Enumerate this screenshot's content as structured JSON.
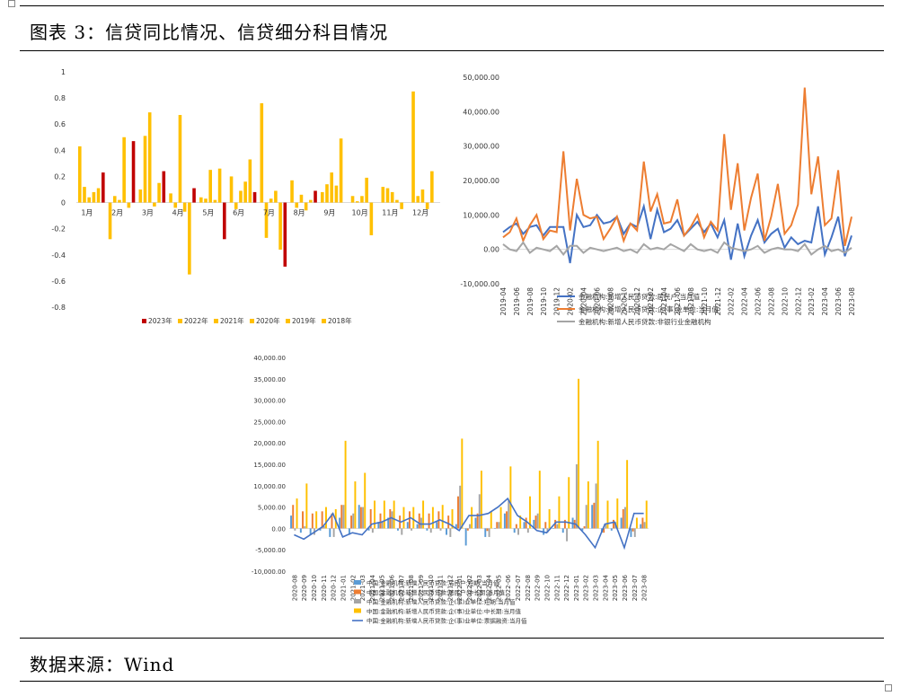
{
  "page": {
    "title": "图表 3：信贷同比情况、信贷细分科目情况",
    "source": "数据来源：Wind"
  },
  "colors": {
    "c2023": "#c00000",
    "cYellow": "#ffc000",
    "blue": "#4472c4",
    "orange": "#ed7d31",
    "gray": "#a5a5a5",
    "steel": "#5b9bd5"
  },
  "chart_data": [
    {
      "type": "bar",
      "ylim": [
        -0.8,
        1
      ],
      "yticks": [
        "1",
        "0.8",
        "0.6",
        "0.4",
        "0.2",
        "0",
        "-0.2",
        "-0.4",
        "-0.6",
        "-0.8"
      ],
      "categories": [
        "1月",
        "2月",
        "3月",
        "4月",
        "5月",
        "6月",
        "7月",
        "8月",
        "9月",
        "10月",
        "11月",
        "12月"
      ],
      "legend_position": "bottom",
      "series": [
        {
          "name": "2023年",
          "color": "#c00000",
          "values": [
            0.23,
            0.47,
            0.24,
            0.11,
            -0.28,
            0.08,
            -0.49,
            0.09,
            null,
            null,
            null,
            null
          ]
        },
        {
          "name": "2022年",
          "color": "#ffc000",
          "values": [
            0.43,
            -0.28,
            0.1,
            0.07,
            0.04,
            0.2,
            0.76,
            0.17,
            0.08,
            0.05,
            0.12,
            0.85
          ]
        },
        {
          "name": "2021年",
          "color": "#ffc000",
          "values": [
            0.12,
            0.05,
            0.51,
            -0.04,
            0.03,
            -0.05,
            -0.27,
            -0.04,
            0.14,
            0.01,
            0.11,
            0.05
          ]
        },
        {
          "name": "2020年",
          "color": "#ffc000",
          "values": [
            0.04,
            0.02,
            0.69,
            0.67,
            0.25,
            0.09,
            0.03,
            0.06,
            0.23,
            0.05,
            0.08,
            0.1
          ]
        },
        {
          "name": "2019年",
          "color": "#ffc000",
          "values": [
            0.08,
            0.5,
            -0.03,
            -0.07,
            0.02,
            0.16,
            0.09,
            -0.06,
            0.13,
            0.19,
            0.02,
            -0.05
          ]
        },
        {
          "name": "2018年",
          "color": "#ffc000",
          "values": [
            0.11,
            -0.04,
            0.15,
            -0.55,
            0.26,
            0.33,
            -0.36,
            0.02,
            0.49,
            -0.25,
            -0.05,
            0.24
          ]
        }
      ]
    },
    {
      "type": "line",
      "ylim": [
        -10000,
        50000
      ],
      "yticks": [
        "50,000.00",
        "40,000.00",
        "30,000.00",
        "20,000.00",
        "10,000.00",
        "0.00",
        "-10,000.00"
      ],
      "x": [
        "2019-04",
        "2019-05",
        "2019-06",
        "2019-07",
        "2019-08",
        "2019-09",
        "2019-10",
        "2019-11",
        "2019-12",
        "2020-01",
        "2020-02",
        "2020-03",
        "2020-04",
        "2020-05",
        "2020-06",
        "2020-07",
        "2020-08",
        "2020-09",
        "2020-10",
        "2020-11",
        "2020-12",
        "2021-01",
        "2021-02",
        "2021-03",
        "2021-04",
        "2021-05",
        "2021-06",
        "2021-07",
        "2021-08",
        "2021-09",
        "2021-10",
        "2021-11",
        "2021-12",
        "2022-01",
        "2022-02",
        "2022-03",
        "2022-04",
        "2022-05",
        "2022-06",
        "2022-07",
        "2022-08",
        "2022-09",
        "2022-10",
        "2022-11",
        "2022-12",
        "2023-01",
        "2023-02",
        "2023-03",
        "2023-04",
        "2023-05",
        "2023-06",
        "2023-07",
        "2023-08"
      ],
      "xticks": [
        "2019-04",
        "2019-06",
        "2019-08",
        "2019-10",
        "2019-12",
        "2020-02",
        "2020-04",
        "2020-06",
        "2020-08",
        "2020-10",
        "2020-12",
        "2021-02",
        "2021-04",
        "2021-06",
        "2021-08",
        "2021-10",
        "2021-12",
        "2022-02",
        "2022-04",
        "2022-06",
        "2022-08",
        "2022-10",
        "2022-12",
        "2023-02",
        "2023-04",
        "2023-06",
        "2023-08"
      ],
      "legend_position": "bottom",
      "series": [
        {
          "name": "金融机构:新增人民币贷款:居民户:当月值",
          "color": "#4472c4",
          "values": [
            5000,
            6500,
            7500,
            4500,
            6500,
            7000,
            4000,
            6500,
            6500,
            6500,
            -4000,
            10000,
            6500,
            7000,
            10000,
            7500,
            8000,
            9500,
            4500,
            7500,
            6500,
            12500,
            3000,
            11500,
            5000,
            6000,
            8500,
            4000,
            6000,
            8000,
            5000,
            7500,
            3500,
            8500,
            -3000,
            7500,
            -2000,
            4000,
            8500,
            2000,
            4500,
            6000,
            500,
            3500,
            1500,
            2500,
            2000,
            12500,
            -1500,
            3500,
            9500,
            -2000,
            4000
          ]
        },
        {
          "name": "金融机构:新增人民币贷款:企(事)业单位:当月值",
          "color": "#ed7d31",
          "values": [
            3500,
            5000,
            9000,
            2500,
            7000,
            10000,
            3000,
            5500,
            5000,
            28500,
            5500,
            20500,
            10000,
            9000,
            9500,
            3000,
            6000,
            9500,
            2500,
            7500,
            5500,
            25500,
            11000,
            16000,
            7500,
            8000,
            14500,
            4000,
            6500,
            10000,
            3500,
            8000,
            5500,
            33500,
            11500,
            25000,
            5500,
            15000,
            22000,
            2500,
            9500,
            19000,
            4500,
            7000,
            13000,
            47000,
            16000,
            27000,
            7000,
            9000,
            23000,
            1000,
            9500
          ]
        },
        {
          "name": "金融机构:新增人民币贷款:非银行业金融机构",
          "color": "#a5a5a5",
          "values": [
            1500,
            0,
            -500,
            2000,
            -1000,
            500,
            0,
            -500,
            1000,
            -1500,
            1000,
            1000,
            -1000,
            500,
            0,
            -500,
            0,
            500,
            -500,
            0,
            -1000,
            1500,
            0,
            500,
            0,
            1500,
            500,
            -500,
            1500,
            0,
            -500,
            0,
            -1000,
            2000,
            500,
            0,
            -500,
            0,
            1000,
            -1000,
            0,
            500,
            0,
            0,
            -500,
            1500,
            -1500,
            0,
            1000,
            -500,
            0,
            -1000,
            500
          ]
        }
      ]
    },
    {
      "type": "bar",
      "ylim": [
        -10000,
        40000
      ],
      "yticks": [
        "40,000.00",
        "35,000.00",
        "30,000.00",
        "25,000.00",
        "20,000.00",
        "15,000.00",
        "10,000.00",
        "5,000.00",
        "0.00",
        "-5,000.00",
        "-10,000.00"
      ],
      "x": [
        "2020-08",
        "2020-09",
        "2020-10",
        "2020-11",
        "2020-12",
        "2021-01",
        "2021-02",
        "2021-03",
        "2021-04",
        "2021-05",
        "2021-06",
        "2021-07",
        "2021-08",
        "2021-09",
        "2021-10",
        "2021-11",
        "2021-12",
        "2022-01",
        "2022-02",
        "2022-03",
        "2022-04",
        "2022-05",
        "2022-06",
        "2022-07",
        "2022-08",
        "2022-09",
        "2022-10",
        "2022-11",
        "2022-12",
        "2023-01",
        "2023-02",
        "2023-03",
        "2023-04",
        "2023-05",
        "2023-06",
        "2023-07",
        "2023-08"
      ],
      "xticks": [
        "2020-08",
        "2020-09",
        "2020-10",
        "2020-11",
        "2020-12",
        "2021-01",
        "2021-02",
        "2021-03",
        "2021-04",
        "2021-05",
        "2021-06",
        "2021-07",
        "2021-08",
        "2021-09",
        "2021-10",
        "2021-11",
        "2021-12",
        "2022-01",
        "2022-02",
        "2022-03",
        "2022-04",
        "2022-05",
        "2022-06",
        "2022-07",
        "2022-08",
        "2022-09",
        "2022-10",
        "2022-11",
        "2022-12",
        "2023-01",
        "2023-02",
        "2023-03",
        "2023-04",
        "2023-05",
        "2023-06",
        "2023-07",
        "2023-08"
      ],
      "legend_position": "bottom",
      "series": [
        {
          "name": "中国:金融机构:新增人民币贷款:居民户:短期:当月值",
          "kind": "bar",
          "color": "#5b9bd5",
          "values": [
            3000,
            -1000,
            -1500,
            -500,
            -2000,
            2500,
            -1500,
            5500,
            -500,
            1500,
            2500,
            -500,
            1500,
            1000,
            -500,
            1500,
            -1500,
            1000,
            -4000,
            2500,
            -2000,
            0,
            3500,
            -1000,
            1500,
            2000,
            -1500,
            0,
            -1000,
            2500,
            -500,
            5500,
            -1000,
            -500,
            2500,
            -2000,
            1000
          ]
        },
        {
          "name": "中国:金融机构:新增人民币贷款:居民户:中长期:当月值",
          "kind": "bar",
          "color": "#ed7d31",
          "values": [
            5500,
            4000,
            3500,
            4000,
            3500,
            5500,
            3000,
            5000,
            4500,
            3500,
            4500,
            3000,
            4000,
            3500,
            3500,
            4000,
            3000,
            7500,
            -500,
            3500,
            -600,
            1500,
            4000,
            1000,
            2500,
            3000,
            1500,
            2000,
            2000,
            2000,
            500,
            6000,
            -1000,
            2000,
            4500,
            -700,
            2500
          ]
        },
        {
          "name": "中国:金融机构:新增人民币贷款:企(事)业单位:短期:当月值",
          "kind": "bar",
          "color": "#a5a5a5",
          "values": [
            -500,
            500,
            -1500,
            500,
            -2000,
            5500,
            3500,
            5000,
            -1000,
            1500,
            4000,
            -1500,
            -500,
            2500,
            -1000,
            -500,
            -2000,
            10000,
            1000,
            8000,
            -2000,
            1500,
            6500,
            -1500,
            -1000,
            3500,
            -1000,
            1000,
            -3000,
            15000,
            5500,
            10500,
            1000,
            1500,
            5000,
            -2000,
            1500
          ]
        },
        {
          "name": "中国:金融机构:新增人民币贷款:企(事)业单位:中长期:当月值",
          "kind": "bar",
          "color": "#ffc000",
          "values": [
            7000,
            10500,
            4000,
            5000,
            4500,
            20500,
            11000,
            13000,
            6500,
            6500,
            6500,
            5000,
            5000,
            6500,
            5000,
            5500,
            4500,
            21000,
            5000,
            13500,
            4000,
            5000,
            14500,
            3000,
            7500,
            13500,
            4500,
            7500,
            12000,
            35000,
            11000,
            20500,
            6500,
            7000,
            16000,
            2500,
            6500
          ]
        },
        {
          "name": "中国:金融机构:新增人民币贷款:企(事)业单位:票据融资:当月值",
          "kind": "line",
          "color": "#4472c4",
          "values": [
            -1500,
            -2500,
            -1000,
            500,
            3500,
            -2000,
            -1000,
            -1500,
            1000,
            1500,
            2500,
            1500,
            2500,
            1000,
            1000,
            2000,
            1000,
            -500,
            3000,
            3000,
            3500,
            5000,
            7000,
            3000,
            1500,
            -500,
            -1000,
            1500,
            1500,
            1000,
            -1500,
            -4500,
            1000,
            1500,
            -4500,
            3500,
            3500
          ]
        }
      ]
    }
  ]
}
